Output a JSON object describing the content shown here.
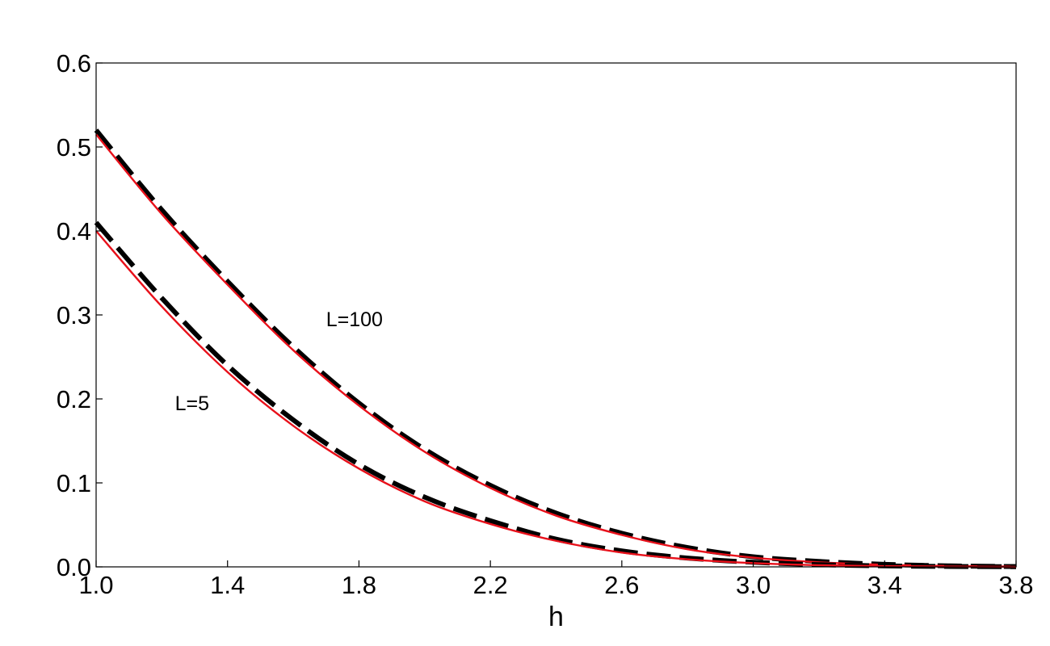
{
  "chart_data": {
    "type": "line",
    "title": "",
    "xlabel": "h",
    "ylabel": "",
    "xlim": [
      1.0,
      3.8
    ],
    "ylim": [
      0.0,
      0.6
    ],
    "xticks": [
      "1.0",
      "1.4",
      "1.8",
      "2.2",
      "2.6",
      "3.0",
      "3.4",
      "3.8"
    ],
    "yticks": [
      "0.0",
      "0.1",
      "0.2",
      "0.3",
      "0.4",
      "0.5",
      "0.6"
    ],
    "grid": false,
    "annotations": [
      {
        "text": "L=100",
        "x": 1.7,
        "y": 0.295
      },
      {
        "text": "L=5",
        "x": 1.24,
        "y": 0.195
      }
    ],
    "series": [
      {
        "style": "dashed",
        "color": "#000000",
        "x": [
          1.0,
          1.2,
          1.4,
          1.6,
          1.8,
          2.0,
          2.2,
          2.4,
          2.6,
          2.8,
          3.0,
          3.2,
          3.4,
          3.6,
          3.8
        ],
        "values": [
          0.52,
          0.425,
          0.34,
          0.262,
          0.195,
          0.14,
          0.097,
          0.064,
          0.04,
          0.023,
          0.012,
          0.0065,
          0.003,
          0.0012,
          0.0004
        ]
      },
      {
        "style": "solid",
        "color": "#e8101a",
        "x": [
          1.0,
          1.2,
          1.4,
          1.6,
          1.8,
          2.0,
          2.2,
          2.4,
          2.6,
          2.8,
          3.0,
          3.2,
          3.4,
          3.6,
          3.8
        ],
        "values": [
          0.515,
          0.42,
          0.336,
          0.258,
          0.192,
          0.137,
          0.094,
          0.061,
          0.038,
          0.021,
          0.011,
          0.0055,
          0.0025,
          0.001,
          0.0003
        ]
      },
      {
        "style": "dashed",
        "color": "#000000",
        "x": [
          1.0,
          1.2,
          1.4,
          1.6,
          1.8,
          2.0,
          2.2,
          2.4,
          2.6,
          2.8,
          3.0,
          3.2,
          3.4,
          3.6,
          3.8
        ],
        "values": [
          0.41,
          0.32,
          0.24,
          0.175,
          0.122,
          0.083,
          0.055,
          0.033,
          0.019,
          0.0105,
          0.0055,
          0.0027,
          0.0012,
          0.0005,
          0.0002
        ]
      },
      {
        "style": "solid",
        "color": "#e8101a",
        "x": [
          1.0,
          1.2,
          1.4,
          1.6,
          1.8,
          2.0,
          2.2,
          2.4,
          2.6,
          2.8,
          3.0,
          3.2,
          3.4,
          3.6,
          3.8
        ],
        "values": [
          0.4,
          0.31,
          0.232,
          0.168,
          0.117,
          0.078,
          0.051,
          0.031,
          0.017,
          0.009,
          0.0045,
          0.002,
          0.0009,
          0.0004,
          0.0001
        ]
      }
    ]
  }
}
